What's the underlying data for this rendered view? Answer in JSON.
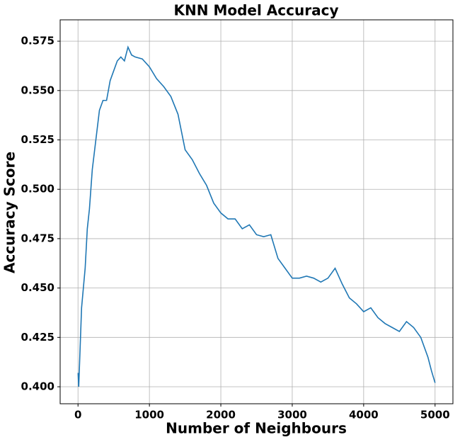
{
  "chart_data": {
    "type": "line",
    "title": "KNN Model Accuracy",
    "x_label": "Number of Neighbours",
    "y_label": "Accuracy Score",
    "color": "#1f77b4",
    "grid": true,
    "x": [
      1,
      10,
      30,
      50,
      80,
      100,
      130,
      160,
      200,
      250,
      300,
      350,
      400,
      450,
      500,
      550,
      600,
      650,
      700,
      750,
      800,
      900,
      1000,
      1100,
      1200,
      1300,
      1400,
      1500,
      1600,
      1700,
      1800,
      1900,
      2000,
      2100,
      2200,
      2300,
      2400,
      2500,
      2600,
      2700,
      2800,
      2900,
      3000,
      3100,
      3200,
      3300,
      3400,
      3500,
      3600,
      3700,
      3800,
      3900,
      4000,
      4100,
      4200,
      4300,
      4400,
      4500,
      4600,
      4700,
      4800,
      4900,
      4950,
      5000
    ],
    "values": [
      0.407,
      0.4,
      0.42,
      0.44,
      0.452,
      0.46,
      0.48,
      0.49,
      0.51,
      0.525,
      0.54,
      0.545,
      0.545,
      0.555,
      0.56,
      0.565,
      0.567,
      0.565,
      0.572,
      0.568,
      0.567,
      0.566,
      0.562,
      0.556,
      0.552,
      0.547,
      0.538,
      0.52,
      0.515,
      0.508,
      0.502,
      0.493,
      0.488,
      0.485,
      0.485,
      0.48,
      0.482,
      0.477,
      0.476,
      0.477,
      0.465,
      0.46,
      0.455,
      0.455,
      0.456,
      0.455,
      0.453,
      0.455,
      0.46,
      0.452,
      0.445,
      0.442,
      0.438,
      0.44,
      0.435,
      0.432,
      0.43,
      0.428,
      0.433,
      0.43,
      0.425,
      0.415,
      0.408,
      0.402
    ],
    "xlim": [
      -250,
      5250
    ],
    "xticks": [
      0,
      1000,
      2000,
      3000,
      4000,
      5000
    ],
    "ylim": [
      0.3914,
      0.5858
    ],
    "yticks": [
      {
        "value": 0.4,
        "label": "0.400"
      },
      0.425,
      {
        "value": 0.45,
        "label": "0.450"
      },
      0.475,
      {
        "value": 0.5,
        "label": "0.500"
      },
      0.525,
      {
        "value": 0.55,
        "label": "0.550"
      },
      0.575
    ]
  }
}
